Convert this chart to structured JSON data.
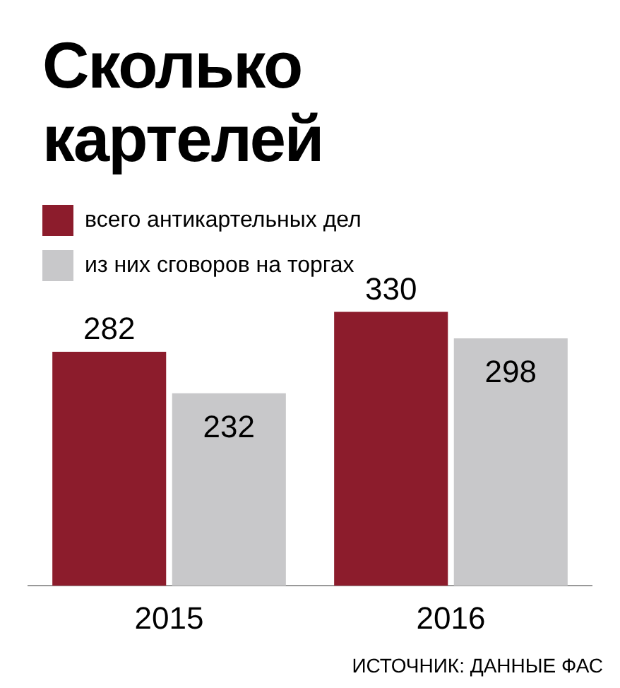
{
  "chart_data": {
    "type": "bar",
    "title": "Сколько картелей",
    "categories": [
      "2015",
      "2016"
    ],
    "series": [
      {
        "name": "всего антикартельных дел",
        "color": "#8c1c2c",
        "values": [
          282,
          330
        ]
      },
      {
        "name": "из них сговоров на торгах",
        "color": "#c8c8ca",
        "values": [
          232,
          298
        ]
      }
    ],
    "data_labels": true,
    "legend": "top left",
    "grid": false,
    "tick_labels": "x",
    "annotations": [
      "ИСТОЧНИК: ДАННЫЕ ФАС"
    ]
  }
}
